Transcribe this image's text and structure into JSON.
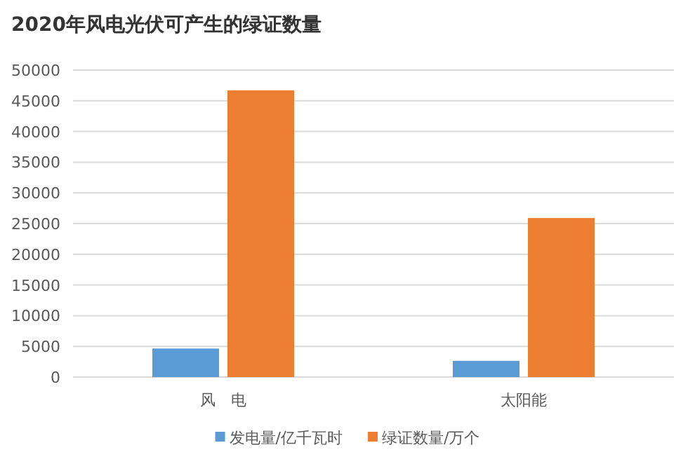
{
  "chart_data": {
    "type": "bar",
    "title": "2020年风电光伏可产生的绿证数量",
    "categories": [
      "风　电",
      "太阳能"
    ],
    "series": [
      {
        "name": "发电量/亿千瓦时",
        "color": "#5b9bd5",
        "values": [
          4650,
          2650
        ]
      },
      {
        "name": "绿证数量/万个",
        "color": "#ed7d31",
        "values": [
          46700,
          25900
        ]
      }
    ],
    "ylim": [
      0,
      50000
    ],
    "yticks": [
      0,
      5000,
      10000,
      15000,
      20000,
      25000,
      30000,
      35000,
      40000,
      45000,
      50000
    ],
    "grid": "y",
    "legend": "bottom"
  }
}
